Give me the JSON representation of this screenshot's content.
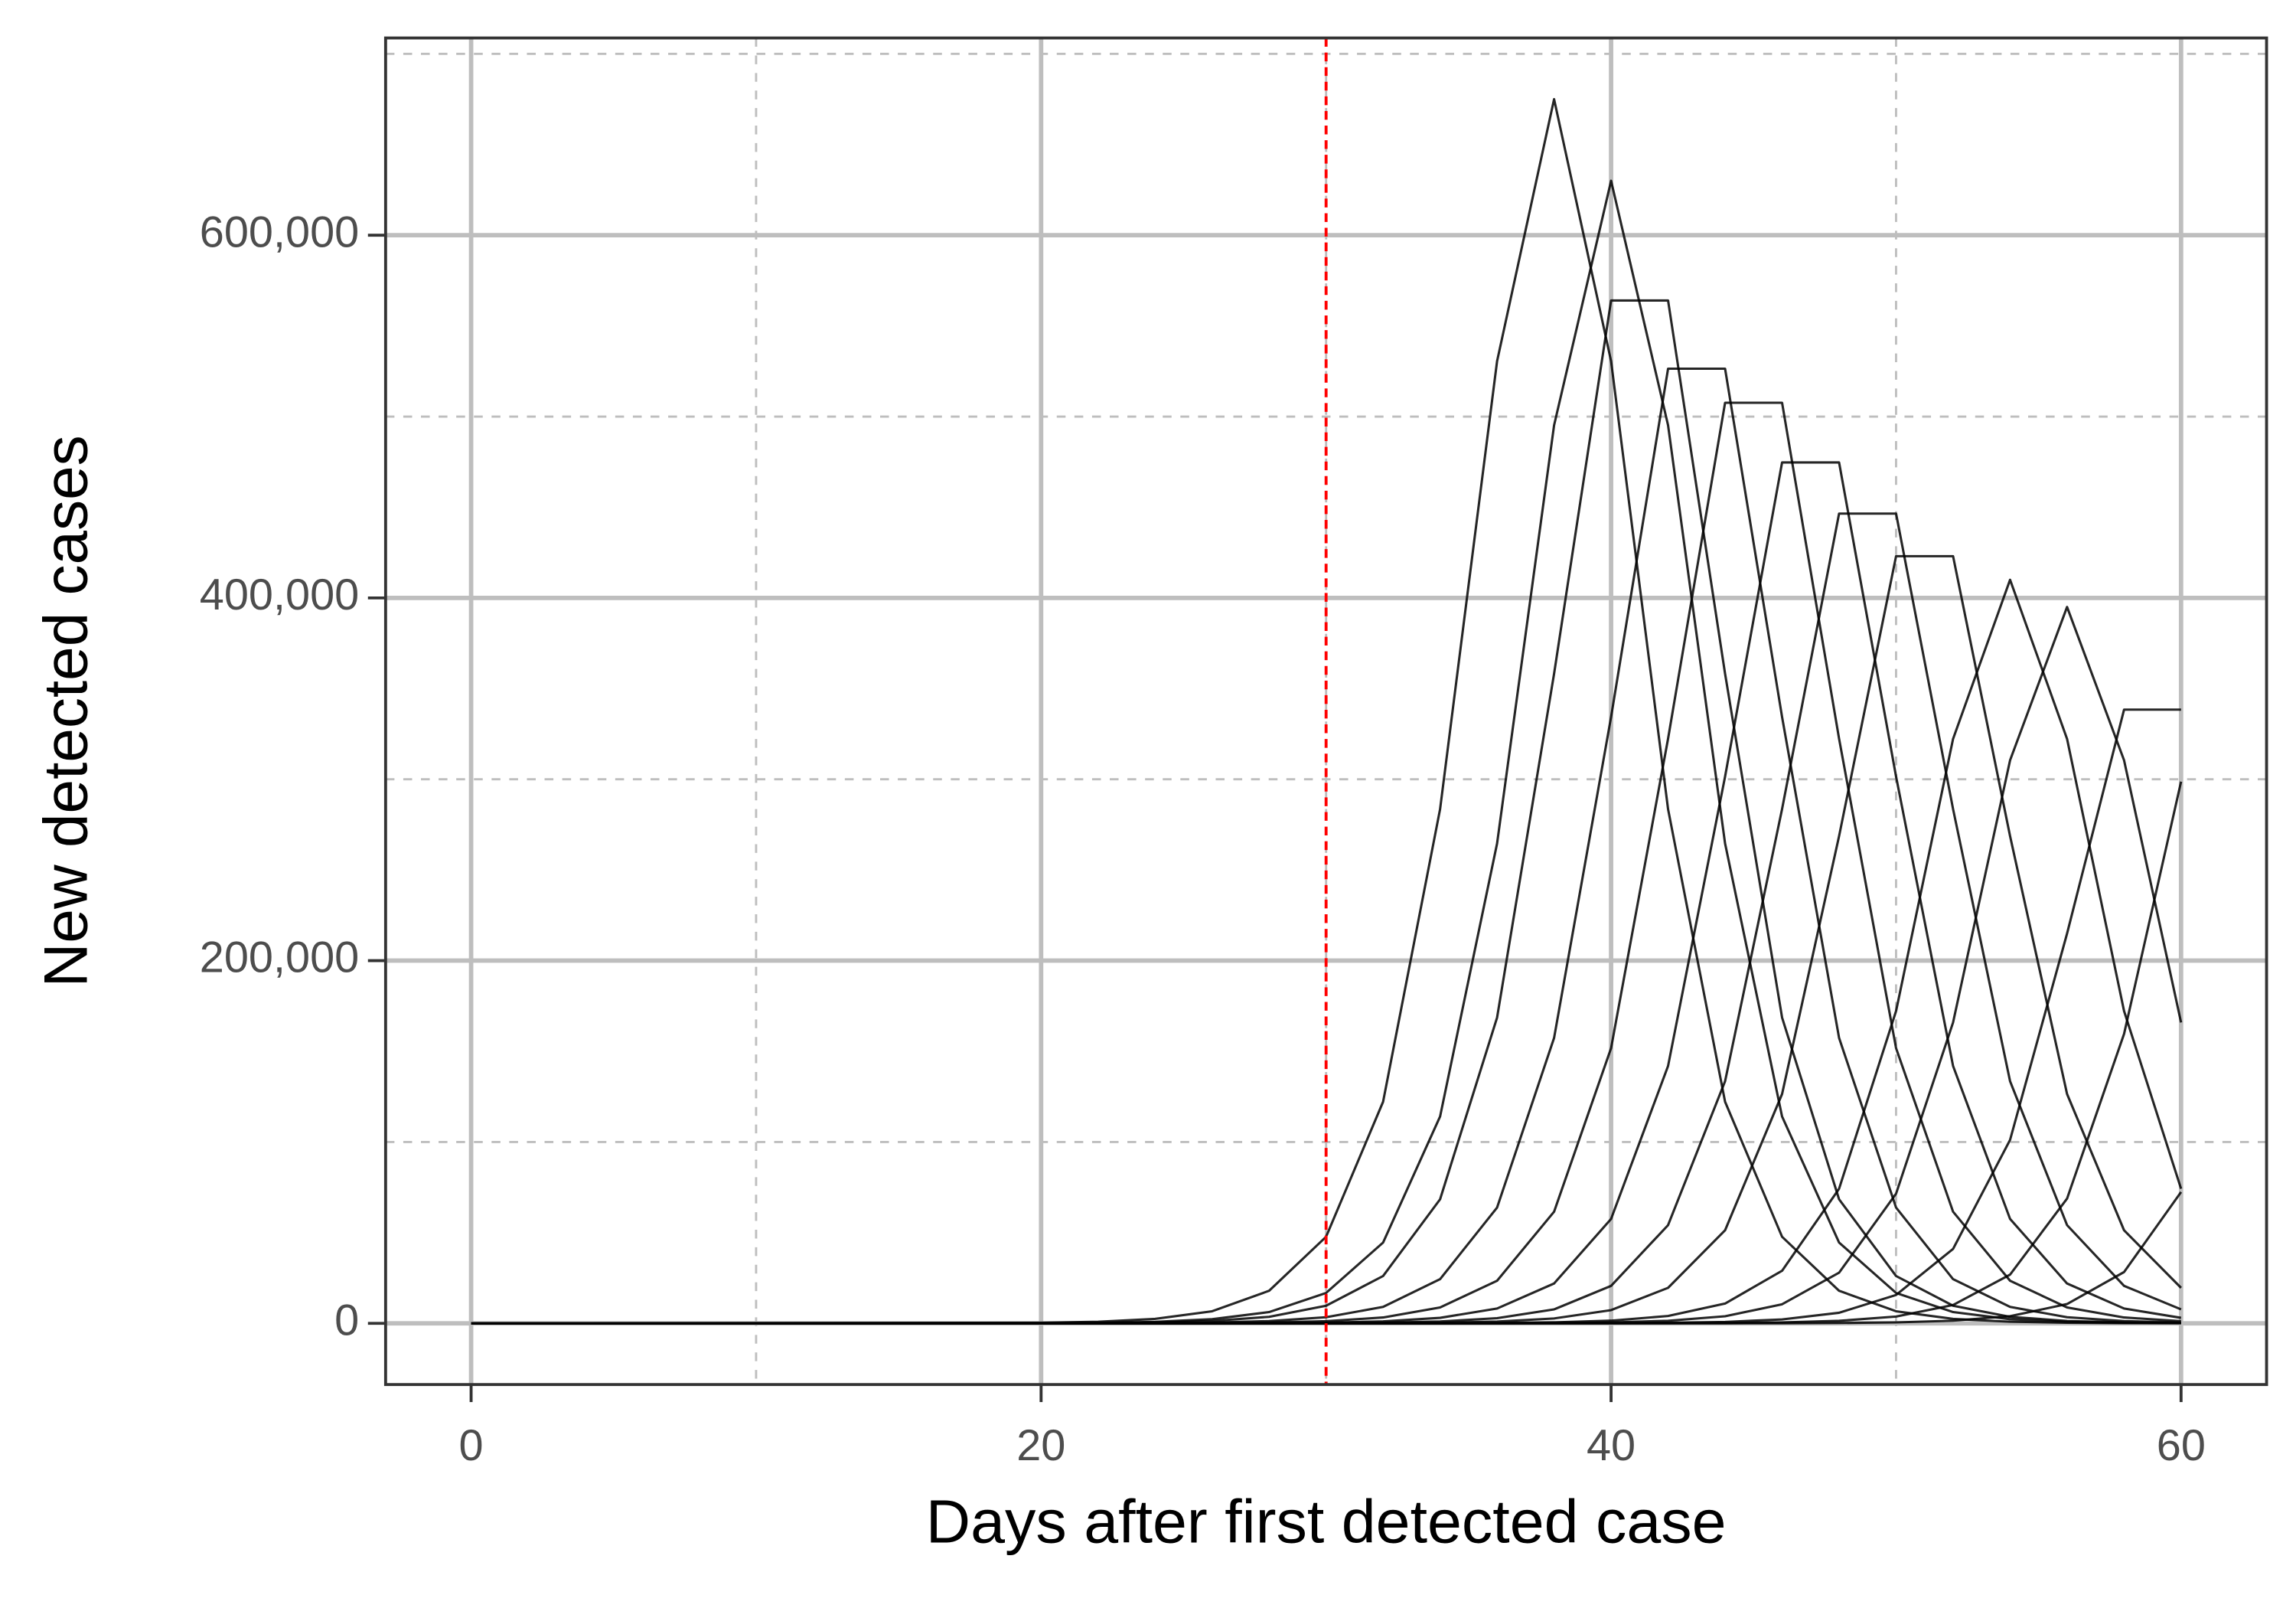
{
  "chart_data": {
    "type": "line",
    "x_label": "Days after first detected case",
    "y_label": "New detected cases",
    "x": [
      0,
      20,
      22,
      24,
      26,
      28,
      30,
      32,
      34,
      36,
      38,
      40,
      42,
      44,
      46,
      48,
      50,
      52,
      54,
      56,
      58,
      60
    ],
    "color": "#000000",
    "series": [
      {
        "values": [
          0,
          333,
          905,
          2457,
          6662,
          17955,
          47723,
          122175,
          283500,
          530550,
          675000,
          530550,
          283500,
          122175,
          47723,
          17955,
          6662,
          2457,
          905,
          333,
          123,
          45
        ]
      },
      {
        "values": [
          0,
          115,
          311,
          844,
          2293,
          6218,
          16758,
          44541,
          114030,
          264600,
          495180,
          630000,
          495180,
          264600,
          114030,
          44541,
          16758,
          6218,
          2293,
          844,
          311,
          115
        ]
      },
      {
        "values": [
          0,
          67,
          180,
          488,
          1326,
          3600,
          9720,
          26100,
          68400,
          168600,
          358200,
          564000,
          564000,
          358200,
          168600,
          68400,
          26100,
          9720,
          3600,
          1326,
          488,
          180
        ]
      },
      {
        "values": [
          0,
          0,
          62,
          167,
          456,
          1238,
          3360,
          9072,
          24360,
          63840,
          157360,
          334320,
          526400,
          526400,
          334320,
          157360,
          63840,
          24360,
          9072,
          3360,
          1238,
          456
        ]
      },
      {
        "values": [
          0,
          0,
          22,
          60,
          161,
          440,
          1193,
          3240,
          8748,
          23490,
          61560,
          151740,
          322380,
          507600,
          507600,
          322380,
          151740,
          61560,
          23490,
          8748,
          3240,
          1193
        ]
      },
      {
        "values": [
          0,
          0,
          0,
          20,
          56,
          151,
          411,
          1116,
          3030,
          8181,
          21968,
          57570,
          141905,
          301485,
          474700,
          474700,
          301485,
          141905,
          57570,
          21968,
          8181,
          3030
        ]
      },
      {
        "values": [
          0,
          0,
          0,
          0,
          19,
          53,
          142,
          387,
          1050,
          2850,
          7695,
          20663,
          54150,
          133475,
          283575,
          446500,
          446500,
          283575,
          133475,
          54150,
          20663,
          7695
        ]
      },
      {
        "values": [
          0,
          0,
          0,
          0,
          0,
          18,
          50,
          135,
          366,
          995,
          2700,
          7290,
          19575,
          51300,
          126450,
          268650,
          423000,
          423000,
          268650,
          126450,
          51300,
          19575
        ]
      },
      {
        "values": [
          0,
          0,
          0,
          0,
          0,
          0,
          10,
          27,
          75,
          203,
          549,
          1492,
          4047,
          10906,
          28987,
          74210,
          172200,
          322260,
          410000,
          322260,
          172200,
          74210
        ]
      },
      {
        "values": [
          0,
          0,
          0,
          0,
          0,
          0,
          0,
          10,
          26,
          72,
          195,
          529,
          1438,
          3899,
          10507,
          27927,
          71495,
          165900,
          310470,
          395000,
          310470,
          165900
        ]
      },
      {
        "values": [
          0,
          0,
          0,
          0,
          0,
          0,
          0,
          0,
          0,
          14,
          40,
          108,
          293,
          796,
          2160,
          5832,
          15660,
          41040,
          101160,
          214920,
          338400,
          338400
        ]
      },
      {
        "values": [
          0,
          0,
          0,
          0,
          0,
          0,
          0,
          0,
          0,
          0,
          0,
          25,
          69,
          188,
          509,
          1383,
          3751,
          10108,
          26866,
          68780,
          159600,
          298680
        ]
      },
      {
        "values": [
          0,
          0,
          0,
          0,
          0,
          0,
          0,
          0,
          0,
          0,
          0,
          0,
          0,
          27,
          73,
          198,
          536,
          1456,
          3948,
          10640,
          28280,
          72400
        ]
      }
    ],
    "xlim": [
      -3,
      63
    ],
    "ylim": [
      -33750,
      708750
    ],
    "xticks": [
      0,
      20,
      40,
      60
    ],
    "yticks": [
      0,
      {
        "value": 200000,
        "label": "200,000"
      },
      {
        "value": 400000,
        "label": "400,000"
      },
      {
        "value": 600000,
        "label": "600,000"
      }
    ],
    "x_minor_grid": [
      10,
      30,
      50
    ],
    "y_minor_grid": [
      100000,
      300000,
      500000,
      700000
    ],
    "grid": true,
    "vline": {
      "x": 30,
      "color": "#ff0000"
    }
  }
}
